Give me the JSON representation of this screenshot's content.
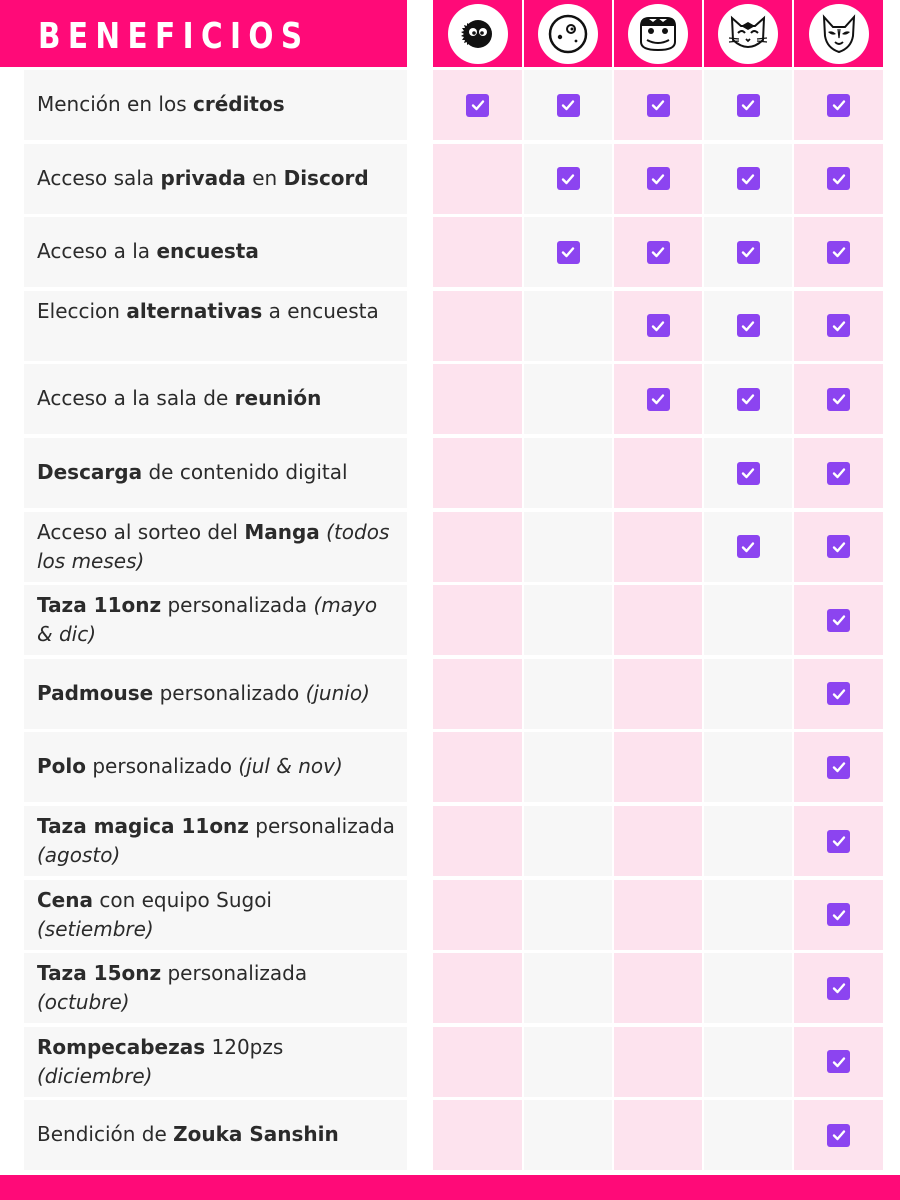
{
  "header": {
    "title": "BENEFICIOS"
  },
  "tiers": [
    {
      "icon": "soot-sprite-icon"
    },
    {
      "icon": "round-face-icon"
    },
    {
      "icon": "frog-face-icon"
    },
    {
      "icon": "cat-face-icon"
    },
    {
      "icon": "kitsune-mask-icon"
    }
  ],
  "colors": {
    "accent": "#ff0a78",
    "check": "#8c44f0",
    "pink_cell": "#fde3ee",
    "grey_cell": "#f7f7f7"
  },
  "rows": [
    {
      "parts": [
        {
          "t": "Mención en los ",
          "s": "n"
        },
        {
          "t": "créditos",
          "s": "b"
        }
      ],
      "checks": [
        true,
        true,
        true,
        true,
        true
      ]
    },
    {
      "parts": [
        {
          "t": "Acceso sala ",
          "s": "n"
        },
        {
          "t": "privada",
          "s": "b"
        },
        {
          "t": " en ",
          "s": "n"
        },
        {
          "t": "Discord",
          "s": "b"
        }
      ],
      "checks": [
        false,
        true,
        true,
        true,
        true
      ]
    },
    {
      "parts": [
        {
          "t": "Acceso a la ",
          "s": "n"
        },
        {
          "t": "encuesta",
          "s": "b"
        }
      ],
      "checks": [
        false,
        true,
        true,
        true,
        true
      ]
    },
    {
      "parts": [
        {
          "t": "Eleccion ",
          "s": "n"
        },
        {
          "t": "alternativas",
          "s": "b"
        },
        {
          "t": " a encuesta",
          "s": "n"
        }
      ],
      "checks": [
        false,
        false,
        true,
        true,
        true
      ]
    },
    {
      "parts": [
        {
          "t": "Acceso a la sala de ",
          "s": "n"
        },
        {
          "t": "reunión",
          "s": "b"
        }
      ],
      "checks": [
        false,
        false,
        true,
        true,
        true
      ]
    },
    {
      "parts": [
        {
          "t": "Descarga",
          "s": "b"
        },
        {
          "t": " de contenido digital",
          "s": "n"
        }
      ],
      "checks": [
        false,
        false,
        false,
        true,
        true
      ]
    },
    {
      "parts": [
        {
          "t": "Acceso al sorteo del ",
          "s": "n"
        },
        {
          "t": "Manga",
          "s": "b"
        },
        {
          "t": " (todos los meses)",
          "s": "i"
        }
      ],
      "checks": [
        false,
        false,
        false,
        true,
        true
      ]
    },
    {
      "parts": [
        {
          "t": "Taza 11onz",
          "s": "b"
        },
        {
          "t": " personalizada ",
          "s": "n"
        },
        {
          "t": "(mayo & dic)",
          "s": "i"
        }
      ],
      "checks": [
        false,
        false,
        false,
        false,
        true
      ]
    },
    {
      "parts": [
        {
          "t": "Padmouse",
          "s": "b"
        },
        {
          "t": " personalizado ",
          "s": "n"
        },
        {
          "t": "(junio)",
          "s": "i"
        }
      ],
      "checks": [
        false,
        false,
        false,
        false,
        true
      ]
    },
    {
      "parts": [
        {
          "t": "Polo",
          "s": "b"
        },
        {
          "t": " personalizado ",
          "s": "n"
        },
        {
          "t": "(jul & nov)",
          "s": "i"
        }
      ],
      "checks": [
        false,
        false,
        false,
        false,
        true
      ]
    },
    {
      "parts": [
        {
          "t": "Taza magica 11onz",
          "s": "b"
        },
        {
          "t": " personalizada ",
          "s": "n"
        },
        {
          "t": "(agosto)",
          "s": "i"
        }
      ],
      "checks": [
        false,
        false,
        false,
        false,
        true
      ]
    },
    {
      "parts": [
        {
          "t": "Cena",
          "s": "b"
        },
        {
          "t": " con equipo Sugoi ",
          "s": "n"
        },
        {
          "t": "(setiembre)",
          "s": "i"
        }
      ],
      "checks": [
        false,
        false,
        false,
        false,
        true
      ]
    },
    {
      "parts": [
        {
          "t": "Taza 15onz",
          "s": "b"
        },
        {
          "t": " personalizada ",
          "s": "n"
        },
        {
          "t": "(octubre)",
          "s": "i"
        }
      ],
      "checks": [
        false,
        false,
        false,
        false,
        true
      ]
    },
    {
      "parts": [
        {
          "t": "Rompecabezas",
          "s": "b"
        },
        {
          "t": " 120pzs ",
          "s": "n"
        },
        {
          "t": "(diciembre)",
          "s": "i"
        }
      ],
      "checks": [
        false,
        false,
        false,
        false,
        true
      ]
    },
    {
      "parts": [
        {
          "t": "Bendición de ",
          "s": "n"
        },
        {
          "t": "Zouka Sanshin",
          "s": "b"
        }
      ],
      "checks": [
        false,
        false,
        false,
        false,
        true
      ]
    }
  ]
}
